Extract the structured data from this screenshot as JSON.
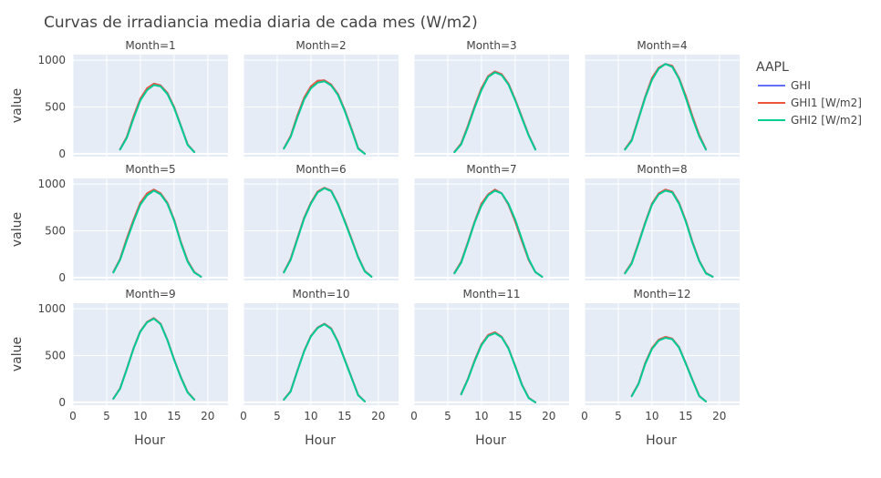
{
  "chart_data": {
    "type": "line",
    "title": "Curvas de irradiancia media diaria de cada mes (W/m2)",
    "xlabel": "Hour",
    "ylabel": "value",
    "xlim": [
      0,
      23
    ],
    "ylim": [
      -30,
      1060
    ],
    "x_ticks": [
      0,
      5,
      10,
      15,
      20
    ],
    "y_ticks": [
      0,
      500,
      1000
    ],
    "grid": true,
    "legend": {
      "title": "AAPL",
      "placement": "right",
      "entries": [
        {
          "name": "GHI",
          "color": "#636efa"
        },
        {
          "name": "GHI1 [W/m2]",
          "color": "#EF553B"
        },
        {
          "name": "GHI2 [W/m2]",
          "color": "#00cc96"
        }
      ]
    },
    "facets": [
      {
        "label": "Month=1",
        "x": [
          7,
          8,
          9,
          10,
          11,
          12,
          13,
          14,
          15,
          16,
          17,
          18
        ],
        "ghi1": [
          50,
          180,
          400,
          590,
          700,
          750,
          730,
          650,
          500,
          300,
          100,
          20
        ],
        "ghi2": [
          45,
          170,
          380,
          570,
          680,
          735,
          720,
          640,
          490,
          295,
          95,
          18
        ]
      },
      {
        "label": "Month=2",
        "x": [
          6,
          7,
          8,
          9,
          10,
          11,
          12,
          13,
          14,
          15,
          16,
          17,
          18
        ],
        "ghi1": [
          60,
          190,
          410,
          600,
          720,
          780,
          785,
          740,
          640,
          470,
          270,
          60,
          0
        ],
        "ghi2": [
          55,
          180,
          390,
          580,
          700,
          760,
          775,
          730,
          630,
          460,
          260,
          55,
          0
        ]
      },
      {
        "label": "Month=3",
        "x": [
          6,
          7,
          8,
          9,
          10,
          11,
          12,
          13,
          14,
          15,
          16,
          17,
          18
        ],
        "ghi1": [
          20,
          110,
          300,
          510,
          700,
          830,
          880,
          850,
          750,
          580,
          390,
          200,
          50
        ],
        "ghi2": [
          18,
          100,
          285,
          495,
          680,
          820,
          870,
          840,
          740,
          570,
          380,
          195,
          45
        ]
      },
      {
        "label": "Month=4",
        "x": [
          6,
          7,
          8,
          9,
          10,
          11,
          12,
          13,
          14,
          15,
          16,
          17,
          18
        ],
        "ghi1": [
          50,
          150,
          380,
          610,
          810,
          920,
          960,
          940,
          810,
          620,
          400,
          200,
          50
        ],
        "ghi2": [
          45,
          140,
          370,
          600,
          790,
          910,
          960,
          930,
          800,
          600,
          380,
          185,
          45
        ]
      },
      {
        "label": "Month=5",
        "x": [
          6,
          7,
          8,
          9,
          10,
          11,
          12,
          13,
          14,
          15,
          16,
          17,
          18,
          19
        ],
        "ghi1": [
          60,
          200,
          420,
          620,
          800,
          900,
          940,
          900,
          800,
          620,
          380,
          180,
          60,
          10
        ],
        "ghi2": [
          55,
          190,
          400,
          600,
          780,
          880,
          930,
          890,
          790,
          610,
          370,
          170,
          55,
          10
        ]
      },
      {
        "label": "Month=6",
        "x": [
          6,
          7,
          8,
          9,
          10,
          11,
          12,
          13,
          14,
          15,
          16,
          17,
          18,
          19
        ],
        "ghi1": [
          60,
          200,
          420,
          640,
          800,
          920,
          960,
          930,
          790,
          610,
          420,
          220,
          70,
          10
        ],
        "ghi2": [
          55,
          190,
          410,
          630,
          790,
          910,
          955,
          925,
          785,
          600,
          410,
          215,
          65,
          10
        ]
      },
      {
        "label": "Month=7",
        "x": [
          6,
          7,
          8,
          9,
          10,
          11,
          12,
          13,
          14,
          15,
          16,
          17,
          18,
          19
        ],
        "ghi1": [
          50,
          170,
          380,
          600,
          790,
          890,
          940,
          900,
          780,
          600,
          390,
          190,
          60,
          10
        ],
        "ghi2": [
          45,
          160,
          370,
          590,
          770,
          880,
          930,
          900,
          790,
          620,
          410,
          200,
          60,
          10
        ]
      },
      {
        "label": "Month=8",
        "x": [
          6,
          7,
          8,
          9,
          10,
          11,
          12,
          13,
          14,
          15,
          16,
          17,
          18,
          19
        ],
        "ghi1": [
          50,
          160,
          370,
          590,
          790,
          900,
          940,
          920,
          800,
          610,
          380,
          180,
          50,
          10
        ],
        "ghi2": [
          45,
          150,
          360,
          580,
          780,
          890,
          930,
          910,
          790,
          600,
          370,
          175,
          45,
          10
        ]
      },
      {
        "label": "Month=9",
        "x": [
          6,
          7,
          8,
          9,
          10,
          11,
          12,
          13,
          14,
          15,
          16,
          17,
          18
        ],
        "ghi1": [
          40,
          150,
          360,
          580,
          760,
          860,
          900,
          840,
          670,
          460,
          270,
          110,
          30
        ],
        "ghi2": [
          38,
          145,
          355,
          575,
          755,
          855,
          895,
          835,
          665,
          455,
          265,
          105,
          28
        ]
      },
      {
        "label": "Month=10",
        "x": [
          6,
          7,
          8,
          9,
          10,
          11,
          12,
          13,
          14,
          15,
          16,
          17,
          18
        ],
        "ghi1": [
          30,
          120,
          340,
          550,
          710,
          800,
          840,
          790,
          650,
          460,
          270,
          80,
          10
        ],
        "ghi2": [
          28,
          115,
          335,
          545,
          705,
          795,
          835,
          785,
          645,
          455,
          265,
          75,
          10
        ]
      },
      {
        "label": "Month=11",
        "x": [
          7,
          8,
          9,
          10,
          11,
          12,
          13,
          14,
          15,
          16,
          17,
          18
        ],
        "ghi1": [
          90,
          250,
          450,
          620,
          720,
          750,
          700,
          580,
          390,
          190,
          50,
          0
        ],
        "ghi2": [
          85,
          245,
          440,
          610,
          710,
          740,
          695,
          575,
          385,
          185,
          45,
          0
        ]
      },
      {
        "label": "Month=12",
        "x": [
          7,
          8,
          9,
          10,
          11,
          12,
          13,
          14,
          15,
          16,
          17,
          18
        ],
        "ghi1": [
          70,
          200,
          420,
          580,
          670,
          700,
          680,
          590,
          420,
          240,
          70,
          10
        ],
        "ghi2": [
          65,
          195,
          410,
          570,
          660,
          690,
          675,
          585,
          415,
          235,
          65,
          10
        ]
      }
    ]
  }
}
